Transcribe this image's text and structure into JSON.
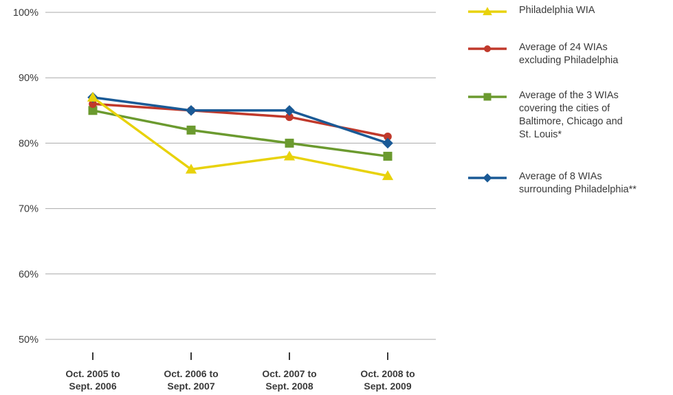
{
  "chart_data": {
    "type": "line",
    "title": "",
    "xlabel": "",
    "ylabel": "",
    "categories": [
      [
        "Oct. 2005 to",
        "Sept. 2006"
      ],
      [
        "Oct. 2006 to",
        "Sept. 2007"
      ],
      [
        "Oct. 2007 to",
        "Sept. 2008"
      ],
      [
        "Oct. 2008 to",
        "Sept. 2009"
      ]
    ],
    "ylim": [
      50,
      100
    ],
    "yticks": [
      50,
      60,
      70,
      80,
      90,
      100
    ],
    "ytick_labels": [
      "50%",
      "60%",
      "70%",
      "80%",
      "90%",
      "100%"
    ],
    "grid": true,
    "legend_position": "right",
    "series": [
      {
        "name": "Philadelphia WIA",
        "legend_text": "Philadelphia WIA",
        "color": "#e8d20b",
        "marker": "triangle",
        "values": [
          87,
          76,
          78,
          75
        ]
      },
      {
        "name": "Average of 24 WIAs excluding Philadelphia",
        "legend_text": "Average of 24 WIAs\nexcluding Philadelphia",
        "color": "#c0392b",
        "marker": "circle",
        "values": [
          86,
          85,
          84,
          81
        ]
      },
      {
        "name": "Average of the 3 WIAs covering the cities of Baltimore, Chicago and St. Louis*",
        "legend_text": "Average of the 3 WIAs\ncovering the cities of\nBaltimore, Chicago and\nSt. Louis*",
        "color": "#6b9a2f",
        "marker": "square",
        "values": [
          85,
          82,
          80,
          78
        ]
      },
      {
        "name": "Average of 8 WIAs surrounding Philadelphia**",
        "legend_text": "Average of 8 WIAs\nsurrounding Philadelphia**",
        "color": "#1a5a96",
        "marker": "diamond",
        "values": [
          87,
          85,
          85,
          80
        ]
      }
    ]
  }
}
